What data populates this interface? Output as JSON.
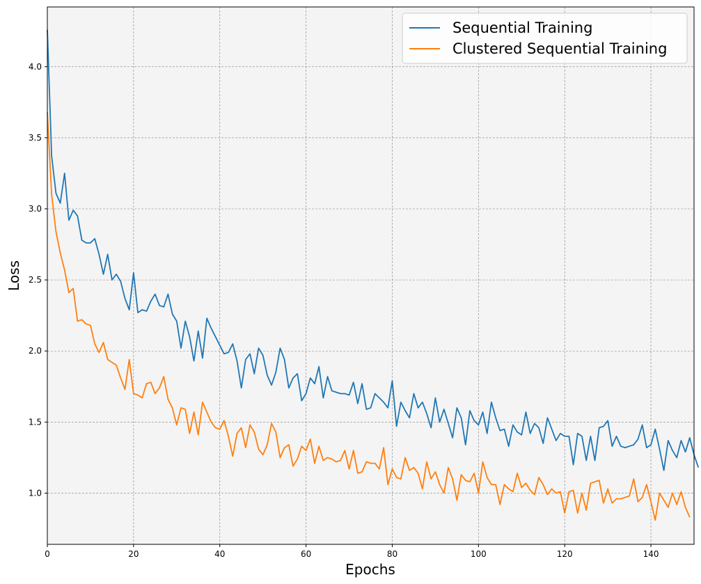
{
  "chart_data": {
    "type": "line",
    "xlabel": "Epochs",
    "ylabel": "Loss",
    "xlim": [
      0,
      150
    ],
    "ylim": [
      0.64,
      4.42
    ],
    "xticks": [
      0,
      20,
      40,
      60,
      80,
      100,
      120,
      140
    ],
    "yticks": [
      1.0,
      1.5,
      2.0,
      2.5,
      3.0,
      3.5,
      4.0
    ],
    "grid": true,
    "legend_position": "top-right",
    "background": "#f4f4f4",
    "series": [
      {
        "name": "Sequential Training",
        "color": "#1f77b4",
        "values": [
          4.26,
          3.37,
          3.11,
          3.04,
          3.25,
          2.92,
          2.99,
          2.95,
          2.78,
          2.76,
          2.76,
          2.79,
          2.68,
          2.54,
          2.68,
          2.5,
          2.54,
          2.49,
          2.37,
          2.29,
          2.55,
          2.27,
          2.29,
          2.28,
          2.35,
          2.4,
          2.32,
          2.31,
          2.4,
          2.26,
          2.21,
          2.02,
          2.21,
          2.1,
          1.93,
          2.14,
          1.95,
          2.23,
          2.16,
          2.1,
          2.04,
          1.98,
          1.99,
          2.05,
          1.93,
          1.74,
          1.94,
          1.98,
          1.84,
          2.02,
          1.97,
          1.83,
          1.76,
          1.85,
          2.02,
          1.94,
          1.74,
          1.81,
          1.84,
          1.65,
          1.7,
          1.81,
          1.77,
          1.89,
          1.67,
          1.82,
          1.72,
          1.71,
          1.7,
          1.7,
          1.69,
          1.78,
          1.63,
          1.77,
          1.59,
          1.6,
          1.7,
          1.67,
          1.64,
          1.6,
          1.79,
          1.47,
          1.64,
          1.58,
          1.53,
          1.7,
          1.6,
          1.64,
          1.56,
          1.46,
          1.67,
          1.5,
          1.59,
          1.49,
          1.39,
          1.6,
          1.53,
          1.34,
          1.58,
          1.51,
          1.48,
          1.57,
          1.42,
          1.64,
          1.53,
          1.44,
          1.45,
          1.33,
          1.48,
          1.43,
          1.41,
          1.57,
          1.42,
          1.49,
          1.46,
          1.35,
          1.53,
          1.45,
          1.37,
          1.42,
          1.4,
          1.4,
          1.2,
          1.42,
          1.4,
          1.23,
          1.4,
          1.23,
          1.46,
          1.47,
          1.51,
          1.33,
          1.4,
          1.33,
          1.32,
          1.33,
          1.34,
          1.38,
          1.48,
          1.32,
          1.34,
          1.45,
          1.31,
          1.16,
          1.37,
          1.3,
          1.25,
          1.37,
          1.29,
          1.39,
          1.27,
          1.18
        ]
      },
      {
        "name": "Clustered Sequential Training",
        "color": "#ff7f0e",
        "values": [
          3.68,
          3.1,
          2.84,
          2.69,
          2.57,
          2.41,
          2.44,
          2.21,
          2.22,
          2.19,
          2.18,
          2.05,
          1.99,
          2.06,
          1.94,
          1.92,
          1.9,
          1.81,
          1.73,
          1.94,
          1.7,
          1.69,
          1.67,
          1.77,
          1.78,
          1.7,
          1.74,
          1.82,
          1.66,
          1.6,
          1.48,
          1.6,
          1.59,
          1.42,
          1.57,
          1.41,
          1.64,
          1.57,
          1.5,
          1.46,
          1.45,
          1.51,
          1.4,
          1.26,
          1.42,
          1.46,
          1.32,
          1.48,
          1.43,
          1.31,
          1.27,
          1.34,
          1.49,
          1.43,
          1.25,
          1.32,
          1.34,
          1.19,
          1.24,
          1.33,
          1.3,
          1.38,
          1.21,
          1.33,
          1.23,
          1.25,
          1.24,
          1.22,
          1.23,
          1.3,
          1.17,
          1.3,
          1.14,
          1.15,
          1.22,
          1.21,
          1.21,
          1.17,
          1.32,
          1.06,
          1.17,
          1.11,
          1.1,
          1.25,
          1.16,
          1.18,
          1.14,
          1.03,
          1.22,
          1.1,
          1.15,
          1.06,
          1.0,
          1.18,
          1.1,
          0.95,
          1.13,
          1.09,
          1.08,
          1.14,
          1.0,
          1.22,
          1.11,
          1.06,
          1.06,
          0.92,
          1.06,
          1.03,
          1.01,
          1.14,
          1.04,
          1.07,
          1.02,
          0.99,
          1.11,
          1.06,
          0.99,
          1.03,
          1.0,
          1.01,
          0.86,
          1.01,
          1.02,
          0.86,
          1.0,
          0.88,
          1.07,
          1.08,
          1.09,
          0.93,
          1.03,
          0.93,
          0.96,
          0.96,
          0.97,
          0.98,
          1.1,
          0.94,
          0.97,
          1.06,
          0.94,
          0.81,
          1.0,
          0.95,
          0.9,
          1.0,
          0.92,
          1.01,
          0.9,
          0.83
        ]
      }
    ]
  }
}
